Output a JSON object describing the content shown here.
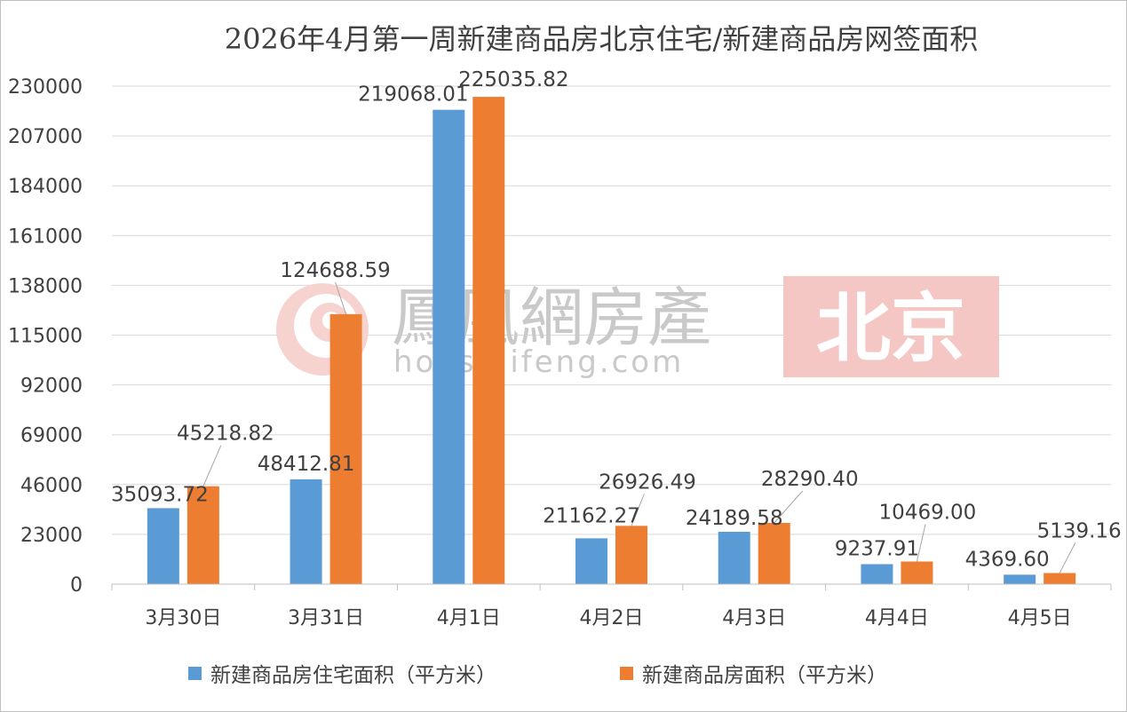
{
  "chart_data": {
    "type": "bar",
    "title": "2026年4月第一周新建商品房北京住宅/新建商品房网签面积",
    "categories": [
      "3月30日",
      "3月31日",
      "4月1日",
      "4月2日",
      "4月3日",
      "4月4日",
      "4月5日"
    ],
    "series": [
      {
        "name": "新建商品房住宅面积（平方米）",
        "color": "#5b9bd5",
        "values": [
          35093.72,
          48412.81,
          219068.01,
          21162.27,
          24189.58,
          9237.91,
          4369.6
        ],
        "labels": [
          "35093.72",
          "48412.81",
          "219068.01",
          "21162.27",
          "24189.58",
          "9237.91",
          "4369.60"
        ]
      },
      {
        "name": "新建商品房面积（平方米）",
        "color": "#ed7d31",
        "values": [
          45218.82,
          124688.59,
          225035.82,
          26926.49,
          28290.4,
          10469.0,
          5139.16
        ],
        "labels": [
          "45218.82",
          "124688.59",
          "225035.82",
          "26926.49",
          "28290.40",
          "10469.00",
          "5139.16"
        ]
      }
    ],
    "ylim": [
      0,
      230000
    ],
    "yticks": [
      "0",
      "23000",
      "46000",
      "69000",
      "92000",
      "115000",
      "138000",
      "161000",
      "184000",
      "207000",
      "230000"
    ],
    "grid": true,
    "legend_position": "bottom"
  },
  "watermark": {
    "brand": "鳳凰網房產",
    "url": "house.ifeng.com",
    "city": "北京",
    "color": "#c9c9c9",
    "city_bg": "#f4c7c5"
  }
}
